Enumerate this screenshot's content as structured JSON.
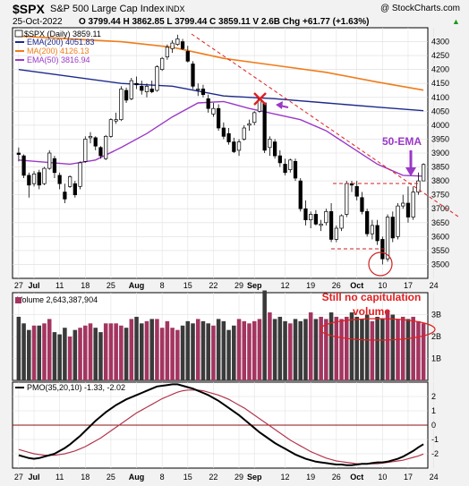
{
  "header": {
    "symbol": "$SPX",
    "name": "S&P 500 Large Cap Index",
    "exchange": "INDX",
    "source": "@ StockCharts.com",
    "date": "25-Oct-2022",
    "quote": "O 3799.44  H 3862.85  L 3799.44  C 3859.11  V 2.6B  Chg +61.77 (+1.63%)",
    "quote_arrow": "▲"
  },
  "legend": [
    {
      "label": "$SPX (Daily) 3859.11",
      "color": "#000000",
      "swatch": "candle"
    },
    {
      "label": "EMA(200) 4051.83",
      "color": "#1c2a8c",
      "swatch": "line"
    },
    {
      "label": "MA(200) 4126.13",
      "color": "#f07c1a",
      "swatch": "line"
    },
    {
      "label": "EMA(50) 3816.94",
      "color": "#9b38c7",
      "swatch": "line"
    }
  ],
  "annotations": {
    "ema_label": "50-EMA",
    "volume_note_line1": "Still no capitulation",
    "volume_note_line2": "volume"
  },
  "colors": {
    "up": "#ffffff",
    "down": "#000000",
    "vol_up": "#a33560",
    "vol_down": "#3a3a3a",
    "pmo": "#000000",
    "pmo_signal": "#b3364d",
    "zero_line": "#8a1010",
    "ema200": "#1c2a8c",
    "ma200": "#f07c1a",
    "ema50": "#9b38c7",
    "annot_red": "#e02020",
    "annot_purple": "#9b38c7"
  },
  "chart_data": [
    {
      "type": "candlestick",
      "legend_position": "top-left",
      "ylim": [
        3450,
        4350
      ],
      "y_ticks": [
        "3500",
        "3550",
        "3600",
        "3650",
        "3700",
        "3750",
        "3800",
        "3850",
        "3900",
        "3950",
        "4000",
        "4050",
        "4100",
        "4150",
        "4200",
        "4250",
        "4300"
      ],
      "x_ticks": [
        "27",
        "Jul",
        "11",
        "18",
        "25",
        "Aug",
        "8",
        "15",
        "22",
        "29",
        "Sep",
        "12",
        "19",
        "26",
        "Oct",
        "10",
        "17",
        "24"
      ],
      "x_tick_index": [
        0,
        3,
        8,
        13,
        18,
        23,
        28,
        33,
        38,
        43,
        46,
        52,
        57,
        62,
        66,
        71,
        76,
        81
      ],
      "grid": true,
      "candles": [
        [
          3900,
          3920,
          3870,
          3895
        ],
        [
          3890,
          3895,
          3810,
          3820
        ],
        [
          3820,
          3830,
          3740,
          3785
        ],
        [
          3790,
          3835,
          3780,
          3825
        ],
        [
          3830,
          3840,
          3770,
          3785
        ],
        [
          3790,
          3850,
          3785,
          3845
        ],
        [
          3845,
          3910,
          3840,
          3900
        ],
        [
          3880,
          3890,
          3810,
          3830
        ],
        [
          3820,
          3830,
          3770,
          3790
        ],
        [
          3760,
          3790,
          3720,
          3735
        ],
        [
          3780,
          3820,
          3775,
          3815
        ],
        [
          3790,
          3800,
          3740,
          3750
        ],
        [
          3780,
          3870,
          3770,
          3865
        ],
        [
          3870,
          3960,
          3865,
          3950
        ],
        [
          3955,
          3975,
          3935,
          3960
        ],
        [
          3955,
          3960,
          3910,
          3925
        ],
        [
          3920,
          3925,
          3880,
          3890
        ],
        [
          3880,
          3965,
          3875,
          3960
        ],
        [
          3960,
          4025,
          3955,
          4020
        ],
        [
          4015,
          4045,
          4005,
          4020
        ],
        [
          4020,
          4140,
          4015,
          4130
        ],
        [
          4125,
          4135,
          4080,
          4090
        ],
        [
          4095,
          4170,
          4090,
          4160
        ],
        [
          4150,
          4175,
          4130,
          4145
        ],
        [
          4140,
          4160,
          4110,
          4125
        ],
        [
          4120,
          4150,
          4100,
          4140
        ],
        [
          4130,
          4160,
          4115,
          4120
        ],
        [
          4125,
          4215,
          4120,
          4210
        ],
        [
          4200,
          4245,
          4195,
          4240
        ],
        [
          4245,
          4290,
          4235,
          4280
        ],
        [
          4275,
          4305,
          4260,
          4295
        ],
        [
          4290,
          4325,
          4285,
          4310
        ],
        [
          4300,
          4310,
          4270,
          4275
        ],
        [
          4265,
          4285,
          4225,
          4230
        ],
        [
          4220,
          4230,
          4130,
          4140
        ],
        [
          4130,
          4150,
          4105,
          4130
        ],
        [
          4130,
          4145,
          4100,
          4110
        ],
        [
          4095,
          4110,
          4045,
          4060
        ],
        [
          4040,
          4080,
          4030,
          4060
        ],
        [
          4060,
          4075,
          3980,
          3990
        ],
        [
          3990,
          4010,
          3950,
          3960
        ],
        [
          3970,
          3990,
          3930,
          3940
        ],
        [
          3940,
          3955,
          3900,
          3905
        ],
        [
          3910,
          3950,
          3890,
          3940
        ],
        [
          3950,
          4000,
          3945,
          3990
        ],
        [
          4000,
          4020,
          3980,
          4005
        ],
        [
          4010,
          4050,
          4000,
          4045
        ],
        [
          4050,
          4100,
          4045,
          4095
        ],
        [
          4080,
          4080,
          3900,
          3910
        ],
        [
          3920,
          3960,
          3890,
          3950
        ],
        [
          3940,
          3950,
          3880,
          3890
        ],
        [
          3890,
          3910,
          3850,
          3865
        ],
        [
          3860,
          3880,
          3820,
          3830
        ],
        [
          3840,
          3880,
          3830,
          3875
        ],
        [
          3870,
          3880,
          3800,
          3810
        ],
        [
          3800,
          3810,
          3690,
          3700
        ],
        [
          3700,
          3730,
          3640,
          3660
        ],
        [
          3660,
          3690,
          3630,
          3680
        ],
        [
          3680,
          3695,
          3640,
          3645
        ],
        [
          3640,
          3660,
          3620,
          3645
        ],
        [
          3650,
          3700,
          3640,
          3690
        ],
        [
          3690,
          3720,
          3580,
          3590
        ],
        [
          3590,
          3640,
          3580,
          3630
        ],
        [
          3630,
          3680,
          3620,
          3675
        ],
        [
          3680,
          3800,
          3670,
          3790
        ],
        [
          3790,
          3800,
          3760,
          3785
        ],
        [
          3780,
          3800,
          3730,
          3745
        ],
        [
          3740,
          3760,
          3680,
          3690
        ],
        [
          3690,
          3700,
          3600,
          3610
        ],
        [
          3610,
          3660,
          3590,
          3640
        ],
        [
          3640,
          3660,
          3570,
          3585
        ],
        [
          3590,
          3600,
          3500,
          3520
        ],
        [
          3520,
          3680,
          3510,
          3670
        ],
        [
          3670,
          3690,
          3580,
          3595
        ],
        [
          3600,
          3720,
          3590,
          3710
        ],
        [
          3710,
          3750,
          3700,
          3720
        ],
        [
          3720,
          3780,
          3650,
          3670
        ],
        [
          3670,
          3780,
          3660,
          3760
        ],
        [
          3760,
          3830,
          3750,
          3800
        ],
        [
          3800,
          3863,
          3799,
          3859
        ]
      ],
      "ema200": [
        [
          0,
          4200
        ],
        [
          20,
          4150
        ],
        [
          30,
          4140
        ],
        [
          40,
          4105
        ],
        [
          50,
          4095
        ],
        [
          60,
          4080
        ],
        [
          70,
          4065
        ],
        [
          79,
          4052
        ]
      ],
      "ma200": [
        [
          0,
          4320
        ],
        [
          20,
          4300
        ],
        [
          30,
          4280
        ],
        [
          40,
          4240
        ],
        [
          50,
          4215
        ],
        [
          60,
          4190
        ],
        [
          70,
          4155
        ],
        [
          79,
          4126
        ]
      ],
      "ema50": [
        [
          0,
          3875
        ],
        [
          10,
          3860
        ],
        [
          15,
          3875
        ],
        [
          20,
          3920
        ],
        [
          25,
          3970
        ],
        [
          30,
          4030
        ],
        [
          35,
          4080
        ],
        [
          40,
          4085
        ],
        [
          45,
          4060
        ],
        [
          50,
          4040
        ],
        [
          55,
          4020
        ],
        [
          60,
          3980
        ],
        [
          65,
          3920
        ],
        [
          70,
          3860
        ],
        [
          75,
          3820
        ],
        [
          79,
          3817
        ]
      ]
    },
    {
      "type": "bar",
      "title": "Volume 2,643,387,904",
      "ylim": [
        0,
        4
      ],
      "y_ticks": [
        "1B",
        "2B",
        "3B"
      ],
      "grid": true,
      "values": [
        2.9,
        2.6,
        2.3,
        2.5,
        2.5,
        2.6,
        2.8,
        2.2,
        2.1,
        2.4,
        2.0,
        2.3,
        2.4,
        2.5,
        2.6,
        2.4,
        2.2,
        2.6,
        2.6,
        2.6,
        2.5,
        2.4,
        2.8,
        2.9,
        2.6,
        2.7,
        2.8,
        2.8,
        2.4,
        2.7,
        2.4,
        2.3,
        2.5,
        2.7,
        2.6,
        2.8,
        2.7,
        2.6,
        2.5,
        2.8,
        2.7,
        2.3,
        2.5,
        2.8,
        2.7,
        2.6,
        2.7,
        2.8,
        4.1,
        3.1,
        2.8,
        2.9,
        2.7,
        2.6,
        2.8,
        2.7,
        2.8,
        3.1,
        2.8,
        2.9,
        2.8,
        3.1,
        2.9,
        2.8,
        2.9,
        3.1,
        2.9,
        2.8,
        3.0,
        2.7,
        2.9,
        2.8,
        3.2,
        3.0,
        2.8,
        2.9,
        2.8,
        2.9,
        2.7,
        2.6
      ]
    },
    {
      "type": "line",
      "title": "PMO(35,20,10) -1.33, -2.02",
      "ylim": [
        -3,
        3
      ],
      "y_ticks": [
        "-2",
        "-1",
        "0",
        "1",
        "2"
      ],
      "grid": true,
      "series": [
        {
          "values": [
            -2.1,
            -2.2,
            -2.3,
            -2.35,
            -2.3,
            -2.2,
            -2.1,
            -2.0,
            -1.8,
            -1.6,
            -1.35,
            -1.05,
            -0.75,
            -0.4,
            -0.05,
            0.3,
            0.6,
            0.9,
            1.15,
            1.4,
            1.6,
            1.8,
            1.95,
            2.1,
            2.25,
            2.4,
            2.55,
            2.7,
            2.75,
            2.8,
            2.85,
            2.85,
            2.75,
            2.65,
            2.55,
            2.4,
            2.25,
            2.1,
            1.9,
            1.7,
            1.45,
            1.2,
            0.95,
            0.7,
            0.4,
            0.1,
            -0.2,
            -0.5,
            -0.75,
            -1.0,
            -1.25,
            -1.45,
            -1.65,
            -1.85,
            -2.05,
            -2.2,
            -2.35,
            -2.45,
            -2.55,
            -2.6,
            -2.65,
            -2.7,
            -2.75,
            -2.75,
            -2.8,
            -2.8,
            -2.75,
            -2.7,
            -2.7,
            -2.65,
            -2.6,
            -2.6,
            -2.55,
            -2.45,
            -2.35,
            -2.2,
            -2.0,
            -1.8,
            -1.55,
            -1.33
          ]
        },
        {
          "values": [
            -1.7,
            -1.8,
            -1.9,
            -2.0,
            -2.05,
            -2.1,
            -2.1,
            -2.1,
            -2.05,
            -2.0,
            -1.9,
            -1.8,
            -1.65,
            -1.5,
            -1.3,
            -1.1,
            -0.9,
            -0.65,
            -0.4,
            -0.15,
            0.1,
            0.35,
            0.6,
            0.85,
            1.05,
            1.25,
            1.45,
            1.65,
            1.85,
            2.0,
            2.15,
            2.3,
            2.4,
            2.45,
            2.45,
            2.45,
            2.4,
            2.3,
            2.2,
            2.1,
            1.95,
            1.8,
            1.6,
            1.4,
            1.2,
            0.95,
            0.7,
            0.45,
            0.2,
            -0.05,
            -0.3,
            -0.55,
            -0.8,
            -1.05,
            -1.25,
            -1.45,
            -1.65,
            -1.85,
            -2.0,
            -2.15,
            -2.3,
            -2.4,
            -2.5,
            -2.55,
            -2.6,
            -2.65,
            -2.7,
            -2.7,
            -2.7,
            -2.7,
            -2.7,
            -2.65,
            -2.6,
            -2.55,
            -2.5,
            -2.45,
            -2.35,
            -2.25,
            -2.15,
            -2.02
          ]
        }
      ]
    }
  ]
}
